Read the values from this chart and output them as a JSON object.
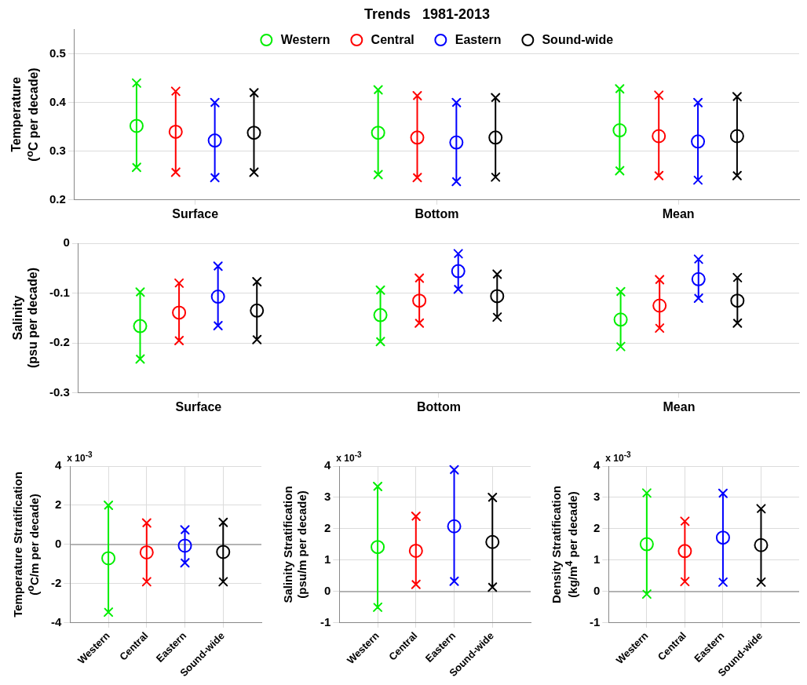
{
  "chart_data": [
    {
      "type": "scatter",
      "title": "Trends   1981-2013",
      "ylabel": "Temperature\n($^{o}$C per decade)",
      "categories": [
        "Surface",
        "Bottom",
        "Mean"
      ],
      "ylim": [
        0.2,
        0.55
      ],
      "yticks": [
        0.2,
        0.3,
        0.4,
        0.5
      ],
      "grid": "y",
      "legend": "top",
      "marker": "circle",
      "series": [
        {
          "name": "Western",
          "color": "#00ee00",
          "values": [
            0.352,
            0.338,
            0.343
          ],
          "errors": [
            [
              0.267,
              0.44
            ],
            [
              0.252,
              0.426
            ],
            [
              0.26,
              0.428
            ]
          ]
        },
        {
          "name": "Central",
          "color": "#ff0000",
          "values": [
            0.34,
            0.328,
            0.331
          ],
          "errors": [
            [
              0.257,
              0.423
            ],
            [
              0.246,
              0.414
            ],
            [
              0.25,
              0.415
            ]
          ]
        },
        {
          "name": "Eastern",
          "color": "#0000ff",
          "values": [
            0.322,
            0.318,
            0.32
          ],
          "errors": [
            [
              0.246,
              0.4
            ],
            [
              0.238,
              0.4
            ],
            [
              0.241,
              0.4
            ]
          ]
        },
        {
          "name": "Sound-wide",
          "color": "#000000",
          "values": [
            0.338,
            0.328,
            0.331
          ],
          "errors": [
            [
              0.257,
              0.42
            ],
            [
              0.247,
              0.41
            ],
            [
              0.25,
              0.412
            ]
          ]
        }
      ]
    },
    {
      "type": "scatter",
      "ylabel": "Salinity\n(psu per decade)",
      "categories": [
        "Surface",
        "Bottom",
        "Mean"
      ],
      "ylim": [
        -0.3,
        0
      ],
      "yticks": [
        -0.3,
        -0.2,
        -0.1,
        0
      ],
      "grid": "y",
      "marker": "circle",
      "series": [
        {
          "color": "#00ee00",
          "values": [
            -0.166,
            -0.144,
            -0.153
          ],
          "errors": [
            [
              -0.232,
              -0.098
            ],
            [
              -0.197,
              -0.094
            ],
            [
              -0.207,
              -0.097
            ]
          ]
        },
        {
          "color": "#ff0000",
          "values": [
            -0.139,
            -0.115,
            -0.125
          ],
          "errors": [
            [
              -0.195,
              -0.08
            ],
            [
              -0.16,
              -0.07
            ],
            [
              -0.17,
              -0.073
            ]
          ]
        },
        {
          "color": "#0000ff",
          "values": [
            -0.107,
            -0.056,
            -0.072
          ],
          "errors": [
            [
              -0.165,
              -0.046
            ],
            [
              -0.092,
              -0.021
            ],
            [
              -0.11,
              -0.032
            ]
          ]
        },
        {
          "color": "#000000",
          "values": [
            -0.135,
            -0.106,
            -0.115
          ],
          "errors": [
            [
              -0.193,
              -0.077
            ],
            [
              -0.148,
              -0.062
            ],
            [
              -0.16,
              -0.069
            ]
          ]
        }
      ]
    },
    {
      "type": "scatter",
      "ylabel": "Temperature Stratification\n($^{o}$C/m per decade)",
      "annotations": [
        "x 10$^{-3}$"
      ],
      "categories": [
        "Western",
        "Central",
        "Eastern",
        "Sound-wide"
      ],
      "ylim": [
        -4,
        4
      ],
      "yticks": [
        -4,
        -2,
        0,
        2,
        4
      ],
      "grid": true,
      "marker": "circle",
      "ref_lines": [
        {
          "axis": "y",
          "value": 0,
          "color": "#a0a0a0"
        }
      ],
      "values": [
        -0.7,
        -0.4,
        -0.06,
        -0.38
      ],
      "colors": [
        "#00ee00",
        "#ff0000",
        "#0000ff",
        "#000000"
      ],
      "errors": [
        [
          -3.45,
          2.0
        ],
        [
          -1.9,
          1.1
        ],
        [
          -0.93,
          0.75
        ],
        [
          -1.9,
          1.13
        ]
      ]
    },
    {
      "type": "scatter",
      "ylabel": "Salinity Stratification\n(psu/m per decade)",
      "annotations": [
        "x 10$^{-3}$"
      ],
      "categories": [
        "Western",
        "Central",
        "Eastern",
        "Sound-wide"
      ],
      "ylim": [
        -1,
        4
      ],
      "yticks": [
        -1,
        0,
        1,
        2,
        3,
        4
      ],
      "grid": true,
      "marker": "circle",
      "ref_lines": [
        {
          "axis": "y",
          "value": 0,
          "color": "#a0a0a0"
        }
      ],
      "values": [
        1.42,
        1.3,
        2.08,
        1.58
      ],
      "colors": [
        "#00ee00",
        "#ff0000",
        "#0000ff",
        "#000000"
      ],
      "errors": [
        [
          -0.5,
          3.35
        ],
        [
          0.23,
          2.4
        ],
        [
          0.33,
          3.88
        ],
        [
          0.14,
          3.0
        ]
      ]
    },
    {
      "type": "scatter",
      "ylabel": "Density Stratification\n(kg/m$^{4}$ per decade)",
      "annotations": [
        "x 10$^{-3}$"
      ],
      "categories": [
        "Western",
        "Central",
        "Eastern",
        "Sound-wide"
      ],
      "ylim": [
        -1,
        4
      ],
      "yticks": [
        -1,
        0,
        1,
        2,
        3,
        4
      ],
      "grid": true,
      "marker": "circle",
      "ref_lines": [
        {
          "axis": "y",
          "value": 0,
          "color": "#a0a0a0"
        }
      ],
      "values": [
        1.51,
        1.29,
        1.72,
        1.48
      ],
      "colors": [
        "#00ee00",
        "#ff0000",
        "#0000ff",
        "#000000"
      ],
      "errors": [
        [
          -0.08,
          3.14
        ],
        [
          0.32,
          2.24
        ],
        [
          0.3,
          3.13
        ],
        [
          0.3,
          2.64
        ]
      ]
    }
  ]
}
